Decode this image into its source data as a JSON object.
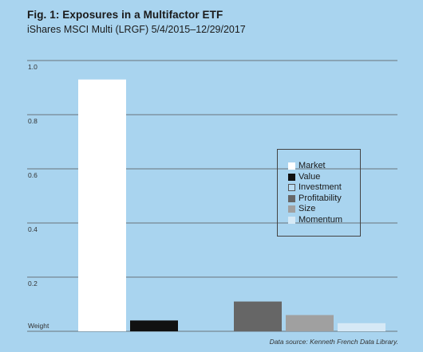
{
  "title": "Fig. 1: Exposures in a Multifactor ETF",
  "subtitle": "iShares MSCI Multi (LRGF) 5/4/2015–12/29/2017",
  "source": "Data source: Kenneth French Data Library.",
  "chart_data": {
    "type": "bar",
    "title": "Fig. 1: Exposures in a Multifactor ETF",
    "subtitle": "iShares MSCI Multi (LRGF) 5/4/2015–12/29/2017",
    "ylabel": "Weight",
    "ylim": [
      0,
      1.0
    ],
    "y_ticks": [
      {
        "value": 1.0,
        "label": "1.0"
      },
      {
        "value": 0.8,
        "label": "0.8"
      },
      {
        "value": 0.6,
        "label": "0.6"
      },
      {
        "value": 0.4,
        "label": "0.4"
      },
      {
        "value": 0.2,
        "label": "0.2"
      }
    ],
    "grid": true,
    "legend_position": "right",
    "categories": [
      "Market",
      "Value",
      "Investment",
      "Profitability",
      "Size",
      "Momentum"
    ],
    "values": [
      0.93,
      0.04,
      0.0,
      0.11,
      0.06,
      0.03
    ],
    "colors": [
      "#ffffff",
      "#111111",
      "#b9dcf2",
      "#666666",
      "#a0a0a0",
      "#d6e9f6"
    ]
  }
}
